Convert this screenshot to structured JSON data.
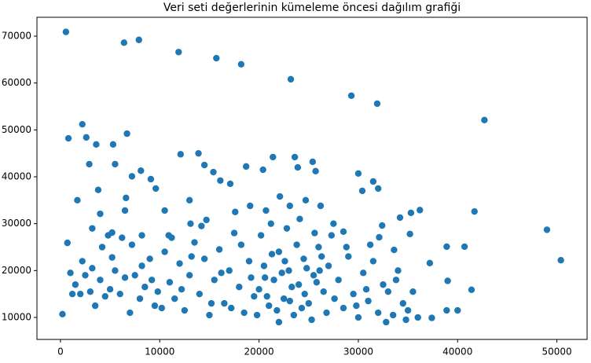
{
  "chart_data": {
    "type": "scatter",
    "title": "Veri seti değerlerinin kümeleme öncesi dağılım grafiği",
    "color": "#1f77b4",
    "grid": false,
    "xlim": [
      -2370,
      53040
    ],
    "ylim": [
      5310,
      74020
    ],
    "xticks": [
      0,
      10000,
      20000,
      30000,
      40000,
      50000
    ],
    "yticks": [
      10000,
      20000,
      30000,
      40000,
      50000,
      60000,
      70000
    ],
    "x": [
      550,
      6400,
      7900,
      11900,
      15700,
      18200,
      23200,
      29300,
      31900,
      42700,
      49000,
      50400,
      41700,
      41400,
      40700,
      38900,
      39000,
      40000,
      38900,
      37200,
      36200,
      35300,
      35200,
      34200,
      37400,
      2200,
      800,
      6700,
      5300,
      2600,
      3600,
      2900,
      5500,
      3800,
      1700,
      700,
      200,
      3200,
      4000,
      8100,
      7200,
      9100,
      12100,
      13900,
      15400,
      14500,
      16100,
      17100,
      18700,
      20400,
      21400,
      23600,
      25400,
      25700,
      23900,
      30000,
      31500,
      30400,
      32000,
      10500,
      13000,
      9600,
      6600,
      6500,
      4800,
      5200,
      8200,
      10900,
      13100,
      14700,
      17600,
      19100,
      20700,
      22100,
      23100,
      24700,
      26200,
      27500,
      28500,
      32400,
      32100,
      33600,
      1000,
      1500,
      2000,
      2500,
      3000,
      3500,
      4000,
      4500,
      5000,
      5500,
      6000,
      6500,
      7000,
      7500,
      8000,
      8500,
      9000,
      9500,
      1200,
      2200,
      3200,
      4200,
      5200,
      6200,
      7200,
      8200,
      9200,
      9800,
      10500,
      11000,
      11500,
      12000,
      12500,
      13000,
      13500,
      14000,
      14500,
      15000,
      15500,
      16000,
      16500,
      17000,
      17500,
      18000,
      18500,
      19000,
      19500,
      10200,
      11200,
      12200,
      13200,
      14200,
      15200,
      16200,
      17200,
      18200,
      19200,
      19800,
      20000,
      20500,
      21000,
      21500,
      22000,
      22500,
      23000,
      23500,
      24000,
      24500,
      25000,
      25500,
      26000,
      26500,
      27000,
      20200,
      20800,
      21300,
      21800,
      22300,
      22800,
      23300,
      23800,
      24300,
      24800,
      25300,
      25800,
      26300,
      26800,
      27300,
      20600,
      21200,
      22600,
      23100,
      24100,
      24600,
      25600,
      26100,
      27600,
      22000,
      28000,
      28500,
      29000,
      29500,
      30000,
      30500,
      31000,
      31500,
      32000,
      32500,
      33000,
      33500,
      34000,
      34500,
      35000,
      35500,
      36000,
      28800,
      31200,
      33800,
      29800,
      30800,
      32800,
      34800
    ],
    "values": [
      70900,
      68600,
      69200,
      66600,
      65300,
      64000,
      60800,
      57300,
      55600,
      52100,
      28700,
      22200,
      32600,
      15900,
      25100,
      25100,
      17800,
      11500,
      11500,
      21600,
      32900,
      32300,
      27800,
      31300,
      9900,
      51200,
      48200,
      49200,
      46900,
      48400,
      46900,
      42700,
      42700,
      37200,
      35000,
      25900,
      10700,
      29000,
      32100,
      41300,
      40100,
      39500,
      44800,
      45000,
      41000,
      42500,
      39200,
      38500,
      42200,
      41500,
      44200,
      44200,
      43200,
      41200,
      42000,
      40700,
      39000,
      37000,
      37500,
      32800,
      35000,
      37500,
      35500,
      32800,
      27500,
      28100,
      27500,
      27500,
      30000,
      30800,
      32500,
      33800,
      32800,
      35800,
      33800,
      35000,
      33800,
      30000,
      28300,
      29600,
      27100,
      24400,
      19500,
      17000,
      15000,
      19000,
      15500,
      12500,
      18000,
      14500,
      16000,
      20000,
      15000,
      18500,
      11000,
      19000,
      14000,
      16500,
      22500,
      12500,
      15000,
      22000,
      20500,
      25000,
      22800,
      27000,
      25500,
      21000,
      18000,
      15500,
      24000,
      17500,
      14000,
      21500,
      11500,
      19000,
      26000,
      15000,
      22500,
      10500,
      18000,
      24500,
      13000,
      20000,
      28000,
      16500,
      11000,
      22000,
      14500,
      12000,
      27000,
      16000,
      23000,
      29500,
      13000,
      19500,
      12000,
      25500,
      18500,
      10500,
      16000,
      21000,
      12500,
      18000,
      24000,
      14000,
      20000,
      10500,
      17000,
      22500,
      13000,
      19000,
      25000,
      15500,
      21000,
      27500,
      14500,
      23500,
      11500,
      19500,
      29000,
      16500,
      25500,
      12000,
      20500,
      9500,
      17500,
      23000,
      11000,
      27500,
      18500,
      30000,
      22000,
      13500,
      31000,
      15000,
      28000,
      20000,
      14000,
      9000,
      18000,
      12000,
      23000,
      15000,
      10000,
      19500,
      13500,
      22000,
      11000,
      17000,
      15500,
      10500,
      20000,
      13000,
      11500,
      15500,
      10000,
      25000,
      25500,
      18000,
      12500,
      16000,
      9000,
      9500
    ]
  }
}
